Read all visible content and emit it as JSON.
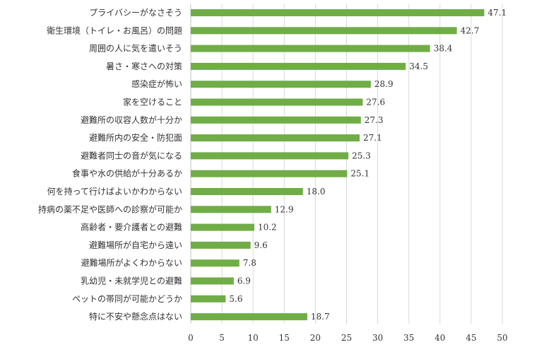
{
  "chart_data": {
    "type": "bar",
    "orientation": "horizontal",
    "categories": [
      "プライバシーがなさそう",
      "衛生環境（トイレ・お風呂）の問題",
      "周囲の人に気を遣いそう",
      "暑さ・寒さへの対策",
      "感染症が怖い",
      "家を空けること",
      "避難所の収容人数が十分か",
      "避難所内の安全・防犯面",
      "避難者同士の音が気になる",
      "食事や水の供給が十分あるか",
      "何を持って行けばよいかわからない",
      "持病の薬不足や医師への診察が可能か",
      "高齢者・要介護者との避難",
      "避難場所が自宅から遠い",
      "避難場所がよくわからない",
      "乳幼児・未就学児との避難",
      "ペットの帯同が可能かどうか",
      "特に不安や懸念点はない"
    ],
    "values": [
      47.1,
      42.7,
      38.4,
      34.5,
      28.9,
      27.6,
      27.3,
      27.1,
      25.3,
      25.1,
      18.0,
      12.9,
      10.2,
      9.6,
      7.8,
      6.9,
      5.6,
      18.7
    ],
    "value_labels": [
      "47.1",
      "42.7",
      "38.4",
      "34.5",
      "28.9",
      "27.6",
      "27.3",
      "27.1",
      "25.3",
      "25.1",
      "18.0",
      "12.9",
      "10.2",
      "9.6",
      "7.8",
      "6.9",
      "5.6",
      "18.7"
    ],
    "xticks": [
      "0",
      "5",
      "10",
      "15",
      "20",
      "25",
      "30",
      "35",
      "40",
      "45",
      "50"
    ],
    "xlim": [
      0,
      50
    ],
    "grid": true,
    "bar_color": "#70ad47",
    "title": "",
    "xlabel": "",
    "ylabel": ""
  }
}
